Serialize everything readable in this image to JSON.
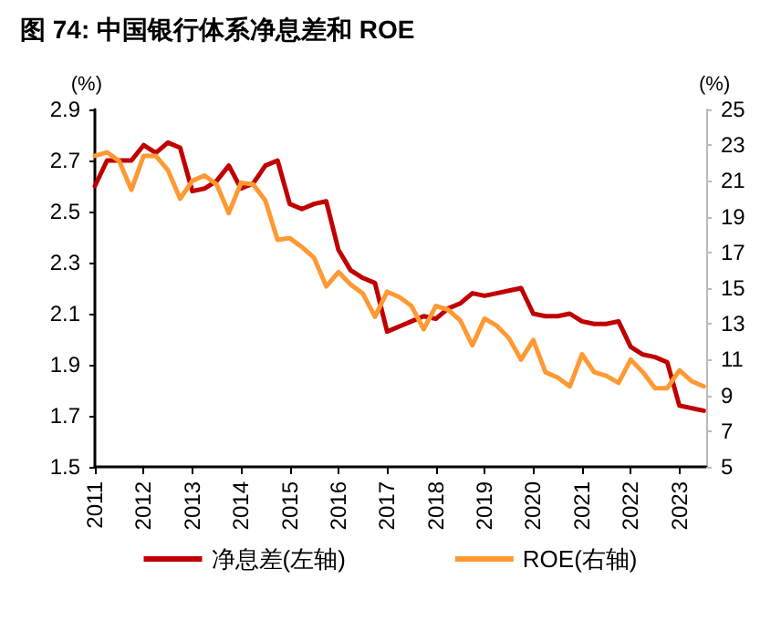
{
  "chart_data": {
    "type": "line",
    "title": "图 74: 中国银行体系净息差和 ROE",
    "ylabel": "(%)",
    "y2label": "(%)",
    "x": [
      2011,
      2011.25,
      2011.5,
      2011.75,
      2012,
      2012.25,
      2012.5,
      2012.75,
      2013,
      2013.25,
      2013.5,
      2013.75,
      2014,
      2014.25,
      2014.5,
      2014.75,
      2015,
      2015.25,
      2015.5,
      2015.75,
      2016,
      2016.25,
      2016.5,
      2016.75,
      2017,
      2017.25,
      2017.5,
      2017.75,
      2018,
      2018.25,
      2018.5,
      2018.75,
      2019,
      2019.25,
      2019.5,
      2019.75,
      2020,
      2020.25,
      2020.5,
      2020.75,
      2021,
      2021.25,
      2021.5,
      2021.75,
      2022,
      2022.25,
      2022.5,
      2022.75,
      2023,
      2023.25,
      2023.5
    ],
    "series": [
      {
        "name": "净息差(左轴)",
        "color": "#c00000",
        "values": [
          2.6,
          2.7,
          2.7,
          2.7,
          2.76,
          2.73,
          2.77,
          2.75,
          2.58,
          2.59,
          2.62,
          2.68,
          2.59,
          2.61,
          2.68,
          2.7,
          2.53,
          2.51,
          2.53,
          2.54,
          2.35,
          2.27,
          2.24,
          2.22,
          2.03,
          2.05,
          2.07,
          2.09,
          2.08,
          2.12,
          2.14,
          2.18,
          2.17,
          2.18,
          2.19,
          2.2,
          2.1,
          2.09,
          2.09,
          2.1,
          2.07,
          2.06,
          2.06,
          2.07,
          1.97,
          1.94,
          1.93,
          1.91,
          1.74,
          1.73,
          1.72
        ]
      },
      {
        "name": "ROE(右轴)",
        "color": "#ff9933",
        "axis": "y2",
        "values": [
          22.4,
          22.6,
          22.1,
          20.5,
          22.4,
          22.4,
          21.6,
          20.0,
          21.0,
          21.3,
          20.8,
          19.2,
          20.9,
          20.8,
          19.9,
          17.7,
          17.8,
          17.3,
          16.7,
          15.1,
          15.9,
          15.2,
          14.7,
          13.4,
          14.8,
          14.5,
          14.0,
          12.7,
          14.0,
          13.8,
          13.2,
          11.8,
          13.3,
          12.9,
          12.2,
          11.0,
          12.1,
          10.3,
          10.0,
          9.5,
          11.3,
          10.3,
          10.1,
          9.7,
          11.0,
          10.3,
          9.4,
          9.4,
          10.4,
          9.8,
          9.5
        ]
      }
    ],
    "xlim": [
      2011,
      2023.55
    ],
    "xticks": [
      2011,
      2012,
      2013,
      2014,
      2015,
      2016,
      2017,
      2018,
      2019,
      2020,
      2021,
      2022,
      2023
    ],
    "ylim": [
      1.5,
      2.9
    ],
    "yticks": [
      1.5,
      1.7,
      1.9,
      2.1,
      2.3,
      2.5,
      2.7,
      2.9
    ],
    "y2lim": [
      5,
      25
    ],
    "y2ticks": [
      5,
      7,
      9,
      11,
      13,
      15,
      17,
      19,
      21,
      23,
      25
    ],
    "grid": false,
    "legend": "bottom",
    "marker": "none",
    "line_style": "solid"
  }
}
